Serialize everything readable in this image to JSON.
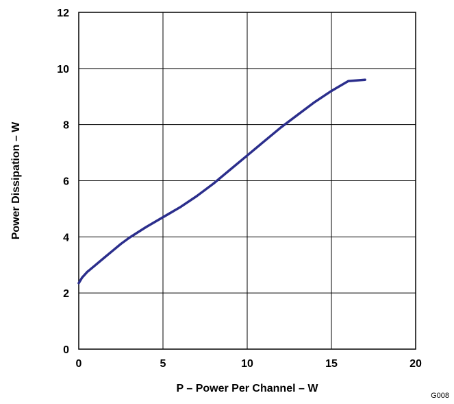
{
  "chart_data": {
    "type": "line",
    "xlabel": "P – Power Per Channel – W",
    "ylabel": "Power Dissipation – W",
    "xlim": [
      0,
      20
    ],
    "ylim": [
      0,
      12
    ],
    "xticks": [
      0,
      5,
      10,
      15,
      20
    ],
    "yticks": [
      0,
      2,
      4,
      6,
      8,
      10,
      12
    ],
    "xtick_labels": [
      "0",
      "5",
      "10",
      "15",
      "20"
    ],
    "ytick_labels": [
      "0",
      "2",
      "4",
      "6",
      "8",
      "10",
      "12"
    ],
    "grid": true,
    "series": [
      {
        "color": "#2b2e8c",
        "x": [
          0,
          0.2,
          0.5,
          1,
          1.5,
          2,
          2.5,
          3,
          4,
          5,
          6,
          7,
          8,
          9,
          10,
          11,
          12,
          13,
          14,
          15,
          16,
          17
        ],
        "y": [
          2.35,
          2.55,
          2.75,
          3.0,
          3.25,
          3.5,
          3.75,
          3.97,
          4.35,
          4.7,
          5.05,
          5.45,
          5.9,
          6.4,
          6.9,
          7.4,
          7.9,
          8.35,
          8.8,
          9.2,
          9.55,
          9.6
        ]
      }
    ]
  },
  "figure_code": "G008"
}
